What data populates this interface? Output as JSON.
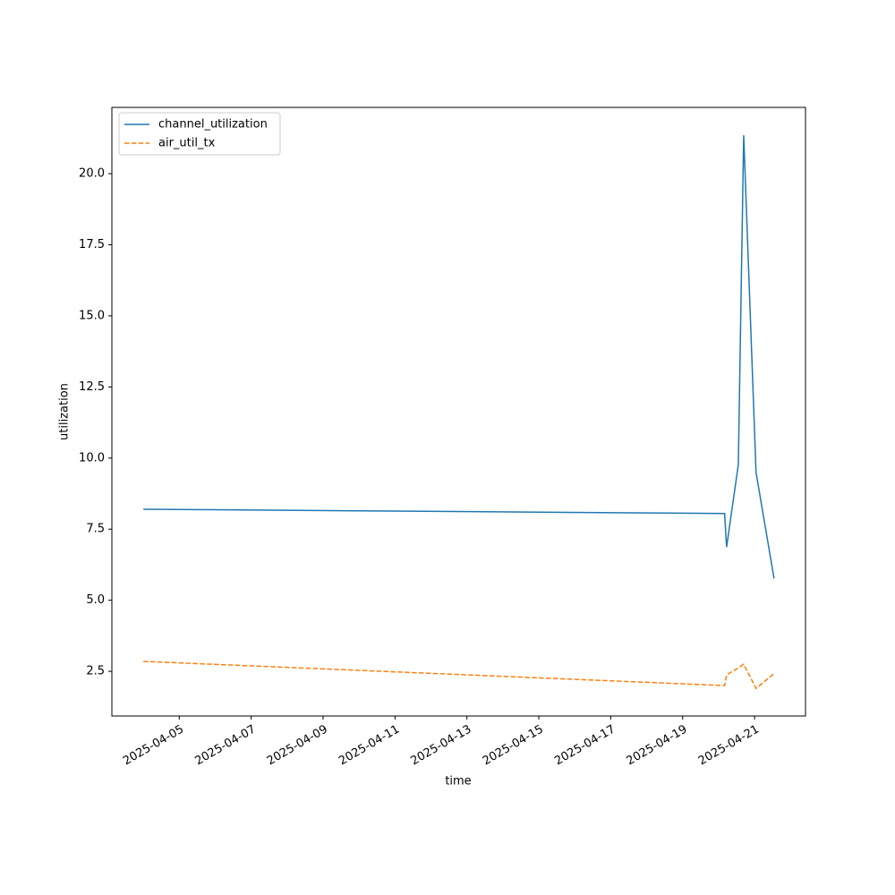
{
  "chart_data": {
    "type": "line",
    "x": [
      "2025-04-04T00:00",
      "2025-04-20T04:00",
      "2025-04-20T05:20",
      "2025-04-20T13:10",
      "2025-04-20T16:45",
      "2025-04-21T01:00",
      "2025-04-21T13:00"
    ],
    "series": [
      {
        "name": "channel_utilization",
        "color": "#1f77b4",
        "dash": false,
        "values": [
          8.2,
          8.05,
          6.87,
          9.77,
          21.35,
          9.49,
          5.77
        ]
      },
      {
        "name": "air_util_tx",
        "color": "#ff7f0e",
        "dash": true,
        "values": [
          2.85,
          2.0,
          2.38,
          2.62,
          2.75,
          1.9,
          2.42
        ]
      }
    ],
    "xlabel": "time",
    "ylabel": "utilization",
    "xlim": [
      "2025-04-03T03:00",
      "2025-04-22T10:00"
    ],
    "xticks": [
      "2025-04-05",
      "2025-04-07",
      "2025-04-09",
      "2025-04-11",
      "2025-04-13",
      "2025-04-15",
      "2025-04-17",
      "2025-04-19",
      "2025-04-21"
    ],
    "ylim": [
      0.93,
      22.33
    ],
    "yticks": [
      2.5,
      {
        "value": 5,
        "label": "5.0"
      },
      7.5,
      {
        "value": 10,
        "label": "10.0"
      },
      12.5,
      {
        "value": 15,
        "label": "15.0"
      },
      17.5,
      {
        "value": 20,
        "label": "20.0"
      }
    ],
    "grid": false,
    "legend": "upper left"
  }
}
